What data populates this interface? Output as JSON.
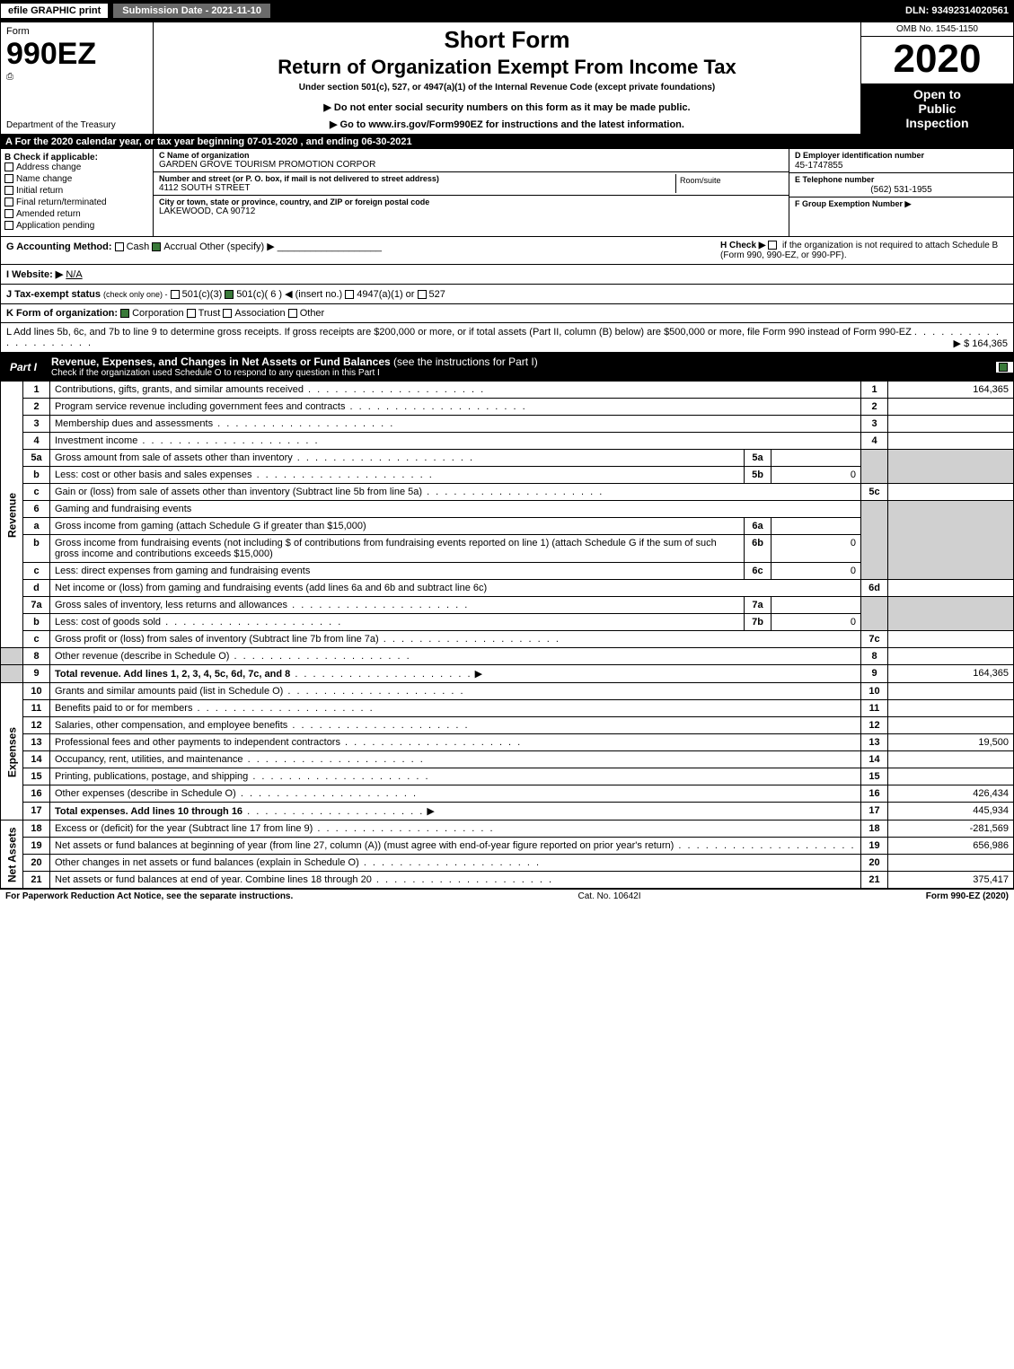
{
  "topbar": {
    "efile": "efile GRAPHIC print",
    "subdate": "Submission Date - 2021-11-10",
    "dln": "DLN: 93492314020561"
  },
  "header": {
    "form_word": "Form",
    "form_num": "990EZ",
    "dept": "Department of the Treasury",
    "irs": "Internal Revenue Service",
    "short_form": "Short Form",
    "return_title": "Return of Organization Exempt From Income Tax",
    "under": "Under section 501(c), 527, or 4947(a)(1) of the Internal Revenue Code (except private foundations)",
    "notice": "▶ Do not enter social security numbers on this form as it may be made public.",
    "goto": "▶ Go to www.irs.gov/Form990EZ for instructions and the latest information.",
    "omb": "OMB No. 1545-1150",
    "year": "2020",
    "open1": "Open to",
    "open2": "Public",
    "open3": "Inspection"
  },
  "section_a": "A For the 2020 calendar year, or tax year beginning 07-01-2020 , and ending 06-30-2021",
  "box_b": {
    "label": "B Check if applicable:",
    "opts": [
      "Address change",
      "Name change",
      "Initial return",
      "Final return/terminated",
      "Amended return",
      "Application pending"
    ]
  },
  "box_c": {
    "name_lbl": "C Name of organization",
    "name": "GARDEN GROVE TOURISM PROMOTION CORPOR",
    "street_lbl": "Number and street (or P. O. box, if mail is not delivered to street address)",
    "street": "4112 SOUTH STREET",
    "room_lbl": "Room/suite",
    "city_lbl": "City or town, state or province, country, and ZIP or foreign postal code",
    "city": "LAKEWOOD, CA  90712"
  },
  "box_d": {
    "ein_lbl": "D Employer identification number",
    "ein": "45-1747855",
    "tel_lbl": "E Telephone number",
    "tel": "(562) 531-1955",
    "grp_lbl": "F Group Exemption Number   ▶"
  },
  "g": {
    "label": "G Accounting Method:",
    "cash": "Cash",
    "accrual": "Accrual",
    "other": "Other (specify) ▶",
    "h_label": "H  Check ▶",
    "h_text": "if the organization is not required to attach Schedule B (Form 990, 990-EZ, or 990-PF)."
  },
  "i": {
    "label": "I Website: ▶",
    "val": "N/A"
  },
  "j": {
    "label": "J Tax-exempt status",
    "sub": "(check only one) -",
    "o1": "501(c)(3)",
    "o2": "501(c)( 6 ) ◀ (insert no.)",
    "o3": "4947(a)(1) or",
    "o4": "527"
  },
  "k": {
    "label": "K Form of organization:",
    "o1": "Corporation",
    "o2": "Trust",
    "o3": "Association",
    "o4": "Other"
  },
  "l": {
    "text": "L Add lines 5b, 6c, and 7b to line 9 to determine gross receipts. If gross receipts are $200,000 or more, or if total assets (Part II, column (B) below) are $500,000 or more, file Form 990 instead of Form 990-EZ",
    "val": "▶ $ 164,365"
  },
  "part1": {
    "tab": "Part I",
    "title": "Revenue, Expenses, and Changes in Net Assets or Fund Balances",
    "title_sub": "(see the instructions for Part I)",
    "check_line": "Check if the organization used Schedule O to respond to any question in this Part I"
  },
  "sidebar": {
    "rev": "Revenue",
    "exp": "Expenses",
    "net": "Net Assets"
  },
  "rows": {
    "r1": {
      "n": "1",
      "d": "Contributions, gifts, grants, and similar amounts received",
      "bn": "1",
      "v": "164,365"
    },
    "r2": {
      "n": "2",
      "d": "Program service revenue including government fees and contracts",
      "bn": "2",
      "v": ""
    },
    "r3": {
      "n": "3",
      "d": "Membership dues and assessments",
      "bn": "3",
      "v": ""
    },
    "r4": {
      "n": "4",
      "d": "Investment income",
      "bn": "4",
      "v": ""
    },
    "r5a": {
      "n": "5a",
      "d": "Gross amount from sale of assets other than inventory",
      "sn": "5a",
      "sv": ""
    },
    "r5b": {
      "n": "b",
      "d": "Less: cost or other basis and sales expenses",
      "sn": "5b",
      "sv": "0"
    },
    "r5c": {
      "n": "c",
      "d": "Gain or (loss) from sale of assets other than inventory (Subtract line 5b from line 5a)",
      "bn": "5c",
      "v": ""
    },
    "r6": {
      "n": "6",
      "d": "Gaming and fundraising events"
    },
    "r6a": {
      "n": "a",
      "d": "Gross income from gaming (attach Schedule G if greater than $15,000)",
      "sn": "6a",
      "sv": ""
    },
    "r6b": {
      "n": "b",
      "d": "Gross income from fundraising events (not including $            of contributions from fundraising events reported on line 1) (attach Schedule G if the sum of such gross income and contributions exceeds $15,000)",
      "sn": "6b",
      "sv": "0"
    },
    "r6c": {
      "n": "c",
      "d": "Less: direct expenses from gaming and fundraising events",
      "sn": "6c",
      "sv": "0"
    },
    "r6d": {
      "n": "d",
      "d": "Net income or (loss) from gaming and fundraising events (add lines 6a and 6b and subtract line 6c)",
      "bn": "6d",
      "v": ""
    },
    "r7a": {
      "n": "7a",
      "d": "Gross sales of inventory, less returns and allowances",
      "sn": "7a",
      "sv": ""
    },
    "r7b": {
      "n": "b",
      "d": "Less: cost of goods sold",
      "sn": "7b",
      "sv": "0"
    },
    "r7c": {
      "n": "c",
      "d": "Gross profit or (loss) from sales of inventory (Subtract line 7b from line 7a)",
      "bn": "7c",
      "v": ""
    },
    "r8": {
      "n": "8",
      "d": "Other revenue (describe in Schedule O)",
      "bn": "8",
      "v": ""
    },
    "r9": {
      "n": "9",
      "d": "Total revenue. Add lines 1, 2, 3, 4, 5c, 6d, 7c, and 8",
      "bn": "9",
      "v": "164,365"
    },
    "r10": {
      "n": "10",
      "d": "Grants and similar amounts paid (list in Schedule O)",
      "bn": "10",
      "v": ""
    },
    "r11": {
      "n": "11",
      "d": "Benefits paid to or for members",
      "bn": "11",
      "v": ""
    },
    "r12": {
      "n": "12",
      "d": "Salaries, other compensation, and employee benefits",
      "bn": "12",
      "v": ""
    },
    "r13": {
      "n": "13",
      "d": "Professional fees and other payments to independent contractors",
      "bn": "13",
      "v": "19,500"
    },
    "r14": {
      "n": "14",
      "d": "Occupancy, rent, utilities, and maintenance",
      "bn": "14",
      "v": ""
    },
    "r15": {
      "n": "15",
      "d": "Printing, publications, postage, and shipping",
      "bn": "15",
      "v": ""
    },
    "r16": {
      "n": "16",
      "d": "Other expenses (describe in Schedule O)",
      "bn": "16",
      "v": "426,434"
    },
    "r17": {
      "n": "17",
      "d": "Total expenses. Add lines 10 through 16",
      "bn": "17",
      "v": "445,934"
    },
    "r18": {
      "n": "18",
      "d": "Excess or (deficit) for the year (Subtract line 17 from line 9)",
      "bn": "18",
      "v": "-281,569"
    },
    "r19": {
      "n": "19",
      "d": "Net assets or fund balances at beginning of year (from line 27, column (A)) (must agree with end-of-year figure reported on prior year's return)",
      "bn": "19",
      "v": "656,986"
    },
    "r20": {
      "n": "20",
      "d": "Other changes in net assets or fund balances (explain in Schedule O)",
      "bn": "20",
      "v": ""
    },
    "r21": {
      "n": "21",
      "d": "Net assets or fund balances at end of year. Combine lines 18 through 20",
      "bn": "21",
      "v": "375,417"
    }
  },
  "footer": {
    "left": "For Paperwork Reduction Act Notice, see the separate instructions.",
    "mid": "Cat. No. 10642I",
    "right": "Form 990-EZ (2020)"
  },
  "colors": {
    "black": "#000000",
    "white": "#ffffff",
    "shade": "#d0d0d0",
    "darkgray": "#6a6a6a",
    "check_green": "#3a7a3a"
  }
}
